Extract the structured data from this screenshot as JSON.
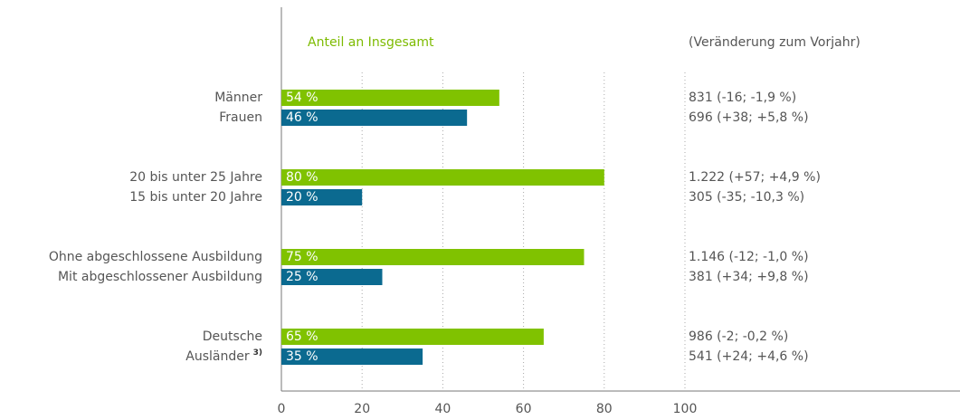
{
  "chart_data": {
    "type": "bar",
    "header": "Anteil an Insgesamt",
    "change_header": "(Veränderung zum Vorjahr)",
    "categories": [
      [
        "Männer",
        "Frauen"
      ],
      [
        "20 bis unter 25 Jahre",
        "15 bis unter 20 Jahre"
      ],
      [
        "Ohne abgeschlossene Ausbildung",
        "Mit abgeschlossener Ausbildung"
      ],
      [
        "Deutsche",
        "Ausländer"
      ]
    ],
    "footnote": "3)",
    "series": [
      {
        "color": "#80c200",
        "values": [
          54,
          80,
          75,
          65
        ],
        "value_labels": [
          "54 %",
          "80 %",
          "75 %",
          "65 %"
        ],
        "changes": [
          "831 (-16; -1,9 %)",
          "1.222 (+57; +4,9 %)",
          "1.146 (-12; -1,0 %)",
          "986 (-2; -0,2 %)"
        ]
      },
      {
        "color": "#0b6a90",
        "values": [
          46,
          20,
          25,
          35
        ],
        "value_labels": [
          "46 %",
          "20 %",
          "25 %",
          "35 %"
        ],
        "changes": [
          "696 (+38; +5,8 %)",
          "305 (-35; -10,3 %)",
          "381 (+34; +9,8 %)",
          "541 (+24; +4,6 %)"
        ]
      }
    ],
    "xlim": [
      0,
      100
    ],
    "xticks": [
      0,
      20,
      40,
      60,
      80,
      100
    ],
    "grid": true
  }
}
